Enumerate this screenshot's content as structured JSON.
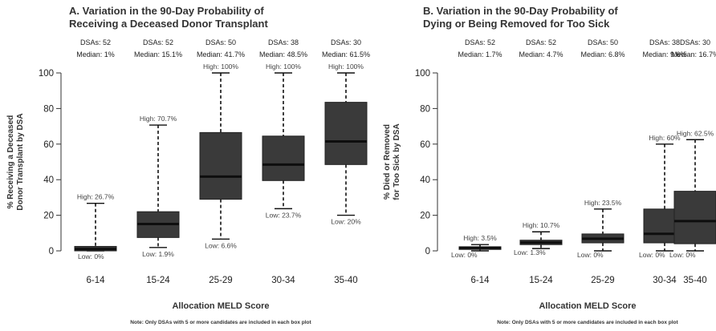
{
  "chart_data": [
    {
      "type": "box",
      "title_line1": "A. Variation in the 90-Day Probability of",
      "title_line2": "Receiving a Deceased Donor Transplant",
      "ylabel_line1": "% Receiving a Deceased",
      "ylabel_line2": "Donor Transplant by DSA",
      "xlabel": "Allocation MELD Score",
      "note": "Note: Only DSAs with 5 or more candidates are included in each box plot",
      "ylim": [
        0,
        100
      ],
      "yticks": [
        "0",
        "20",
        "40",
        "60",
        "80",
        "100"
      ],
      "categories": [
        "6-14",
        "15-24",
        "25-29",
        "30-34",
        "35-40"
      ],
      "dsas_labels": [
        "DSAs: 52",
        "DSAs: 52",
        "DSAs: 50",
        "DSAs: 38",
        "DSAs: 30"
      ],
      "median_labels": [
        "Median: 1%",
        "Median: 15.1%",
        "Median: 41.7%",
        "Median: 48.5%",
        "Median: 61.5%"
      ],
      "high_labels": [
        "High: 26.7%",
        "High: 70.7%",
        "High: 100%",
        "High: 100%",
        "High: 100%"
      ],
      "low_labels": [
        "Low: 0%",
        "Low: 1.9%",
        "Low: 6.6%",
        "Low: 23.7%",
        "Low: 20%"
      ],
      "boxes": [
        {
          "low": 0,
          "q1": 0,
          "median": 1,
          "q3": 2.5,
          "high": 26.7
        },
        {
          "low": 1.9,
          "q1": 7.5,
          "median": 15.1,
          "q3": 22,
          "high": 70.7
        },
        {
          "low": 6.6,
          "q1": 29,
          "median": 41.7,
          "q3": 66.5,
          "high": 100
        },
        {
          "low": 23.7,
          "q1": 39.5,
          "median": 48.5,
          "q3": 64.5,
          "high": 100
        },
        {
          "low": 20,
          "q1": 48.5,
          "median": 61.5,
          "q3": 83.5,
          "high": 100
        }
      ]
    },
    {
      "type": "box",
      "title_line1": "B. Variation in the 90-Day Probability of",
      "title_line2": "Dying or Being Removed for Too Sick",
      "ylabel_line1": "% Died or Removed",
      "ylabel_line2": "for Too Sick by DSA",
      "xlabel": "Allocation MELD Score",
      "note": "Note: Only DSAs with 5 or more candidates are included in each box plot",
      "ylim": [
        0,
        100
      ],
      "yticks": [
        "0",
        "20",
        "40",
        "60",
        "80",
        "100"
      ],
      "categories": [
        "6-14",
        "15-24",
        "25-29",
        "30-34",
        "35-40"
      ],
      "dsas_labels": [
        "DSAs: 52",
        "DSAs: 52",
        "DSAs: 50",
        "DSAs: 38",
        "DSAs: 30"
      ],
      "median_labels": [
        "Median: 1.7%",
        "Median: 4.7%",
        "Median: 6.8%",
        "Median: 9.6%",
        "Median: 16.7%"
      ],
      "high_labels": [
        "High: 3.5%",
        "High: 10.7%",
        "High: 23.5%",
        "High: 60%",
        "High: 62.5%"
      ],
      "low_labels": [
        "Low: 0%",
        "Low: 1.3%",
        "Low: 0%",
        "Low: 0%",
        "Low: 0%"
      ],
      "boxes": [
        {
          "low": 0,
          "q1": 0.8,
          "median": 1.7,
          "q3": 2.3,
          "high": 3.5
        },
        {
          "low": 1.3,
          "q1": 3.5,
          "median": 4.7,
          "q3": 6,
          "high": 10.7
        },
        {
          "low": 0,
          "q1": 4.5,
          "median": 6.8,
          "q3": 9.5,
          "high": 23.5
        },
        {
          "low": 0,
          "q1": 4.5,
          "median": 9.6,
          "q3": 23.5,
          "high": 60
        },
        {
          "low": 0,
          "q1": 4,
          "median": 16.7,
          "q3": 33.5,
          "high": 62.5
        }
      ]
    }
  ]
}
